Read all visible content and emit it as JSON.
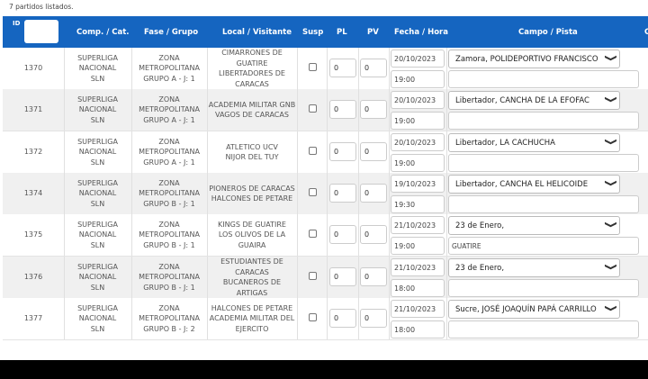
{
  "list_count": "7 partidos listados.",
  "columns": {
    "id": "ID",
    "comp": "Comp. / Cat.",
    "fase": "Fase / Grupo",
    "local": "Local / Visitante",
    "susp": "Susp",
    "pl": "PL",
    "pv": "PV",
    "fecha": "Fecha / Hora",
    "campo": "Campo / Pista",
    "extra": "C"
  },
  "rows": [
    {
      "id": "1370",
      "comp": [
        "SUPERLIGA",
        "NACIONAL",
        "SLN"
      ],
      "fase": [
        "ZONA",
        "METROPOLITANA",
        "GRUPO A - J: 1"
      ],
      "teams": [
        "CIMARRONES DE",
        "GUATIRE",
        "LIBERTADORES DE",
        "CARACAS"
      ],
      "pl": "0",
      "pv": "0",
      "fecha": "20/10/2023",
      "hora": "19:00",
      "campo": "Zamora, POLIDEPORTIVO FRANCISCO",
      "pista": ""
    },
    {
      "id": "1371",
      "comp": [
        "SUPERLIGA",
        "NACIONAL",
        "SLN"
      ],
      "fase": [
        "ZONA",
        "METROPOLITANA",
        "GRUPO A - J: 1"
      ],
      "teams": [
        "ACADEMIA MILITAR GNB",
        "VAGOS DE CARACAS"
      ],
      "pl": "0",
      "pv": "0",
      "fecha": "20/10/2023",
      "hora": "19:00",
      "campo": "Libertador, CANCHA DE LA EFOFAC",
      "pista": ""
    },
    {
      "id": "1372",
      "comp": [
        "SUPERLIGA",
        "NACIONAL",
        "SLN"
      ],
      "fase": [
        "ZONA",
        "METROPOLITANA",
        "GRUPO A - J: 1"
      ],
      "teams": [
        "ATLETICO UCV",
        "NIJOR DEL TUY"
      ],
      "pl": "0",
      "pv": "0",
      "fecha": "20/10/2023",
      "hora": "19:00",
      "campo": "Libertador, LA CACHUCHA",
      "pista": ""
    },
    {
      "id": "1374",
      "comp": [
        "SUPERLIGA",
        "NACIONAL",
        "SLN"
      ],
      "fase": [
        "ZONA",
        "METROPOLITANA",
        "GRUPO B - J: 1"
      ],
      "teams": [
        "PIONEROS DE CARACAS",
        "HALCONES DE PETARE"
      ],
      "pl": "0",
      "pv": "0",
      "fecha": "19/10/2023",
      "hora": "19:30",
      "campo": "Libertador, CANCHA EL HELICOIDE",
      "pista": ""
    },
    {
      "id": "1375",
      "comp": [
        "SUPERLIGA",
        "NACIONAL",
        "SLN"
      ],
      "fase": [
        "ZONA",
        "METROPOLITANA",
        "GRUPO B - J: 1"
      ],
      "teams": [
        "KINGS DE GUATIRE",
        "LOS OLIVOS DE LA",
        "GUAIRA"
      ],
      "pl": "0",
      "pv": "0",
      "fecha": "21/10/2023",
      "hora": "19:00",
      "campo": "23 de Enero,",
      "pista": "GUATIRE"
    },
    {
      "id": "1376",
      "comp": [
        "SUPERLIGA",
        "NACIONAL",
        "SLN"
      ],
      "fase": [
        "ZONA",
        "METROPOLITANA",
        "GRUPO B - J: 1"
      ],
      "teams": [
        "ESTUDIANTES DE",
        "CARACAS",
        "BUCANEROS DE ARTIGAS"
      ],
      "pl": "0",
      "pv": "0",
      "fecha": "21/10/2023",
      "hora": "18:00",
      "campo": "23 de Enero,",
      "pista": ""
    },
    {
      "id": "1377",
      "comp": [
        "SUPERLIGA",
        "NACIONAL",
        "SLN"
      ],
      "fase": [
        "ZONA",
        "METROPOLITANA",
        "GRUPO B - J: 2"
      ],
      "teams": [
        "HALCONES DE PETARE",
        "ACADEMIA MILITAR DEL",
        "EJERCITO"
      ],
      "pl": "0",
      "pv": "0",
      "fecha": "21/10/2023",
      "hora": "18:00",
      "campo": "Sucre, JOSÉ JOAQUÍN PAPÁ CARRILLO",
      "pista": ""
    }
  ]
}
